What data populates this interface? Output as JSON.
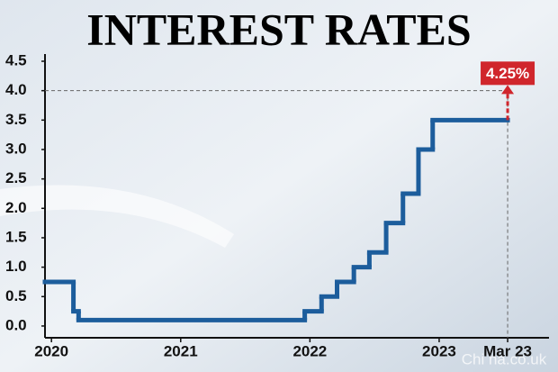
{
  "chart_data": {
    "type": "step",
    "title": "INTEREST RATES",
    "x": [
      2019.95,
      2020.17,
      2020.21,
      2021.96,
      2022.09,
      2022.21,
      2022.34,
      2022.46,
      2022.59,
      2022.72,
      2022.84,
      2022.95
    ],
    "series": [
      {
        "color": "#1c5d9c",
        "values": [
          0.75,
          0.25,
          0.1,
          0.25,
          0.5,
          0.75,
          1.0,
          1.25,
          1.75,
          2.25,
          3.0,
          3.5
        ]
      }
    ],
    "xlim": [
      2019.95,
      2023.85
    ],
    "xticks": [
      2020,
      2021,
      2022,
      2023,
      {
        "value": 2023.53,
        "label": "Mar 23"
      }
    ],
    "ylim": [
      -0.2,
      4.5
    ],
    "yticks": [
      {
        "value": 0,
        "label": "0.0"
      },
      0.5,
      {
        "value": 1,
        "label": "1.0"
      },
      1.5,
      {
        "value": 2,
        "label": "2.0"
      },
      2.5,
      {
        "value": 3,
        "label": "3.0"
      },
      3.5,
      {
        "value": 4,
        "label": "4.0"
      },
      4.5
    ],
    "reference_line": 4,
    "annotation": {
      "x": 2023.53,
      "value": 4.25,
      "label": "4.25%",
      "color": "#d0262c"
    },
    "watermark": "Chi na.co.uk"
  }
}
